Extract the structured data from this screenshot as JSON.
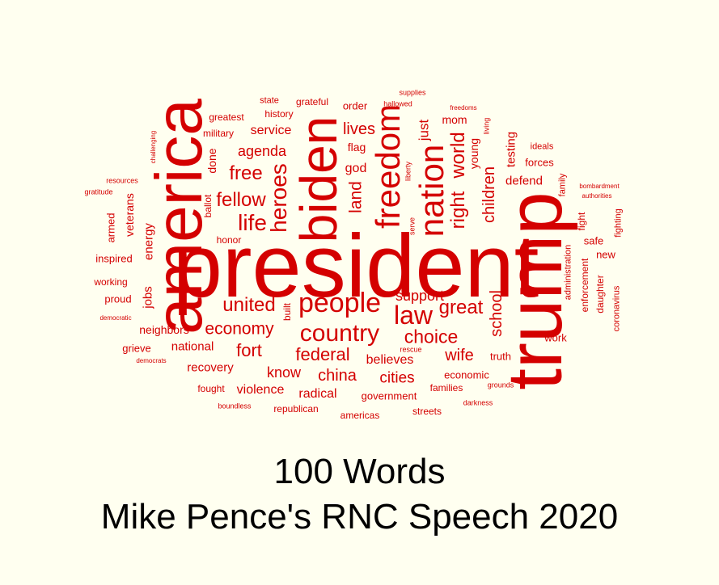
{
  "caption": {
    "line1": "100 Words",
    "line2": "Mike Pence's RNC Speech 2020"
  },
  "colors": {
    "background": "#fffff0",
    "word": "#d40000",
    "caption": "#000000"
  },
  "words": [
    "president",
    "trump",
    "america",
    "biden",
    "freedom",
    "nation",
    "people",
    "country",
    "law",
    "heroes",
    "life",
    "right",
    "world",
    "great",
    "united",
    "fellow",
    "free",
    "economy",
    "choice",
    "fort",
    "federal",
    "china",
    "school",
    "children",
    "land",
    "support",
    "wife",
    "lives",
    "agenda",
    "cities",
    "just",
    "know",
    "believes",
    "radical",
    "violence",
    "recovery",
    "national",
    "god",
    "service",
    "jobs",
    "energy",
    "neighbors",
    "veterans",
    "mom",
    "testing",
    "defend",
    "young",
    "flag",
    "inspired",
    "armed",
    "grieve",
    "proud",
    "working",
    "done",
    "ballot",
    "honor",
    "built",
    "economic",
    "families",
    "government",
    "truth",
    "work",
    "safe",
    "new",
    "enforcement",
    "administration",
    "daughter",
    "fight",
    "family",
    "fighting",
    "forces",
    "ideals",
    "coronavirus",
    "greatest",
    "military",
    "history",
    "state",
    "grateful",
    "order",
    "supplies",
    "hallowed",
    "freedoms",
    "living",
    "challenging",
    "resources",
    "gratitude",
    "bombardment",
    "authorities",
    "liberty",
    "serve",
    "rescue",
    "grounds",
    "darkness",
    "streets",
    "americas",
    "republican",
    "boundless",
    "fought",
    "democrats",
    "democratic"
  ]
}
